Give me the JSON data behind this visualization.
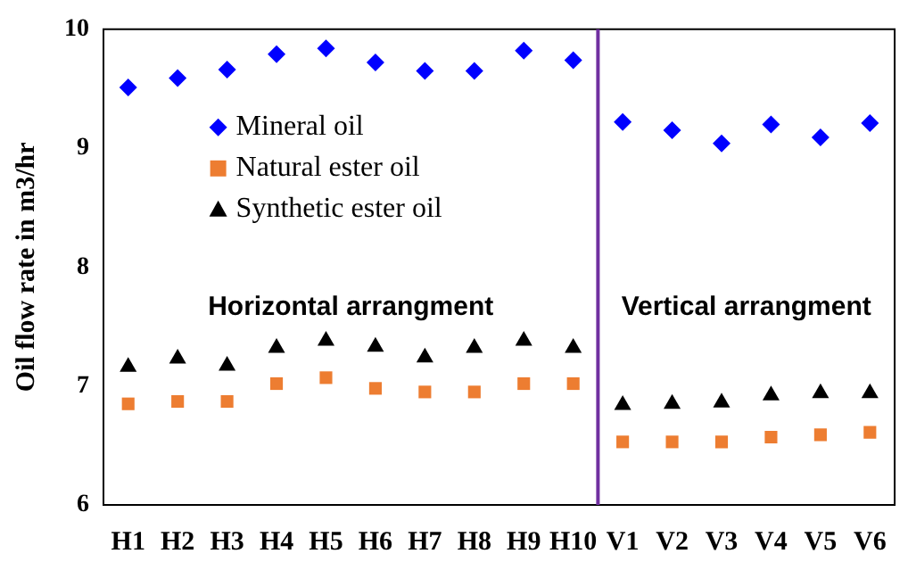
{
  "chart_data": {
    "type": "scatter",
    "ylabel": "Oil flow rate in m3/hr",
    "categories": [
      "H1",
      "H2",
      "H3",
      "H4",
      "H5",
      "H6",
      "H7",
      "H8",
      "H9",
      "H10",
      "V1",
      "V2",
      "V3",
      "V4",
      "V5",
      "V6"
    ],
    "ylim": [
      6,
      10
    ],
    "yticks": [
      6,
      7,
      8,
      9,
      10
    ],
    "grid": false,
    "legend": "top left",
    "series": [
      {
        "name": "Mineral oil",
        "color": "#0000ff",
        "marker": "diamond",
        "values": [
          9.51,
          9.59,
          9.66,
          9.79,
          9.84,
          9.72,
          9.65,
          9.65,
          9.82,
          9.74,
          9.22,
          9.15,
          9.04,
          9.2,
          9.09,
          9.21
        ]
      },
      {
        "name": "Natural ester oil",
        "color": "#ed7d31",
        "marker": "square",
        "values": [
          6.85,
          6.87,
          6.87,
          7.02,
          7.07,
          6.98,
          6.95,
          6.95,
          7.02,
          7.02,
          6.53,
          6.53,
          6.53,
          6.57,
          6.59,
          6.61
        ]
      },
      {
        "name": "Synthetic ester oil",
        "color": "#000000",
        "marker": "triangle",
        "values": [
          7.16,
          7.23,
          7.17,
          7.32,
          7.38,
          7.33,
          7.24,
          7.32,
          7.38,
          7.32,
          6.84,
          6.85,
          6.86,
          6.92,
          6.94,
          6.94
        ]
      }
    ],
    "ref_lines": [
      {
        "axis": "x",
        "value": "H10",
        "color": "#7030a0"
      }
    ],
    "annotations": [
      "Horizontal arrangment",
      "Vertical arrangment"
    ]
  }
}
